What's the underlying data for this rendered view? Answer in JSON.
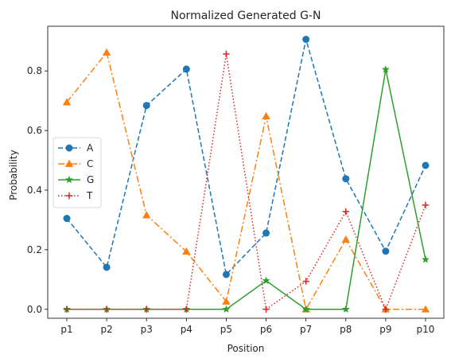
{
  "chart_data": {
    "type": "line",
    "title": "Normalized Generated G-N",
    "xlabel": "Position",
    "ylabel": "Probability",
    "categories": [
      "p1",
      "p2",
      "p3",
      "p4",
      "p5",
      "p6",
      "p7",
      "p8",
      "p9",
      "p10"
    ],
    "ylim": [
      -0.03,
      0.95
    ],
    "yticks": [
      0.0,
      0.2,
      0.4,
      0.6,
      0.8
    ],
    "ytick_labels": [
      "0.0",
      "0.2",
      "0.4",
      "0.6",
      "0.8"
    ],
    "grid": false,
    "legend_position": "center-left",
    "series": [
      {
        "name": "A",
        "color": "#1f77b4",
        "linestyle": "dashed",
        "marker": "circle",
        "values": [
          0.305,
          0.141,
          0.684,
          0.806,
          0.117,
          0.256,
          0.906,
          0.438,
          0.195,
          0.483
        ]
      },
      {
        "name": "C",
        "color": "#ff7f0e",
        "linestyle": "dashdot",
        "marker": "triangle",
        "values": [
          0.695,
          0.862,
          0.316,
          0.194,
          0.026,
          0.648,
          0.0,
          0.234,
          0.0,
          0.0
        ]
      },
      {
        "name": "G",
        "color": "#2ca02c",
        "linestyle": "solid",
        "marker": "star",
        "values": [
          0.0,
          0.0,
          0.0,
          0.0,
          0.0,
          0.096,
          0.0,
          0.0,
          0.805,
          0.167
        ]
      },
      {
        "name": "T",
        "color": "#d62728",
        "linestyle": "dotted",
        "marker": "plus",
        "values": [
          0.0,
          0.0,
          0.0,
          0.0,
          0.857,
          0.0,
          0.094,
          0.328,
          0.0,
          0.35
        ]
      }
    ]
  }
}
